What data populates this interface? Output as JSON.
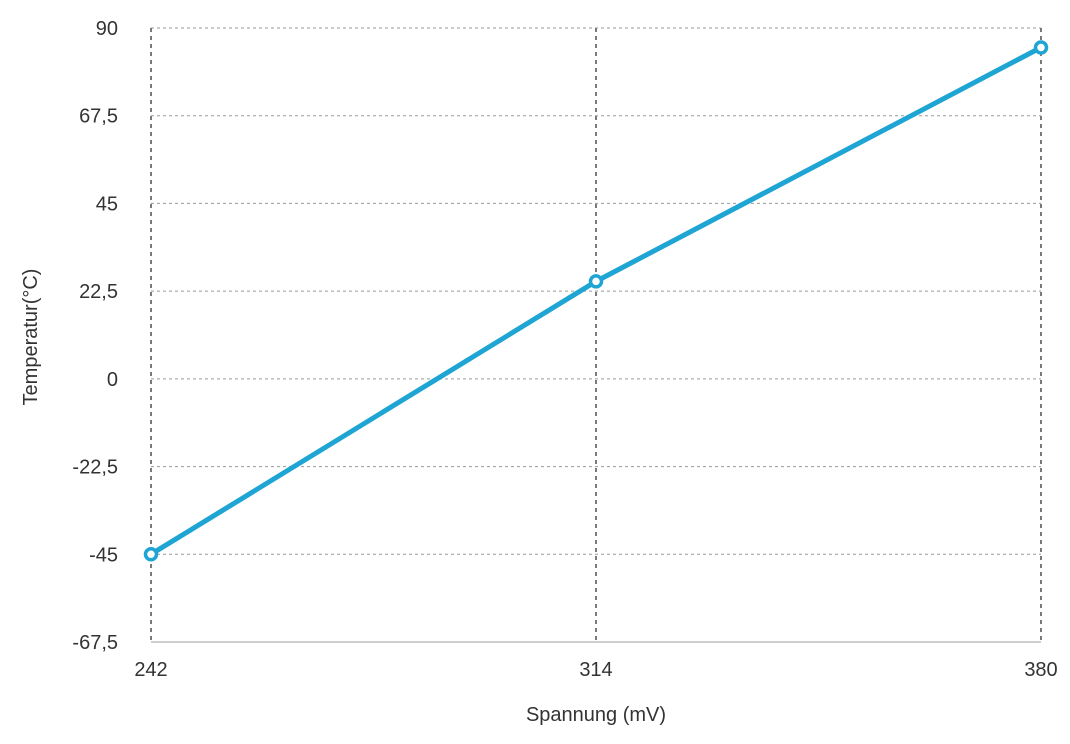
{
  "chart_data": {
    "type": "line",
    "title": "",
    "xlabel": "Spannung (mV)",
    "ylabel": "Temperatur(°C)",
    "x": [
      242,
      314,
      380
    ],
    "x_tick_labels": [
      "242",
      "314",
      "380"
    ],
    "y_ticks": [
      90,
      67.5,
      45,
      22.5,
      0,
      -22.5,
      -45,
      -67.5
    ],
    "y_tick_labels": [
      "90",
      "67,5",
      "45",
      "22,5",
      "0",
      "-22,5",
      "-45",
      "-67,5"
    ],
    "ylim": [
      -67.5,
      90
    ],
    "grid": true,
    "series": [
      {
        "values": [
          -45,
          25,
          85
        ],
        "color": "#1ea5d4"
      }
    ]
  }
}
